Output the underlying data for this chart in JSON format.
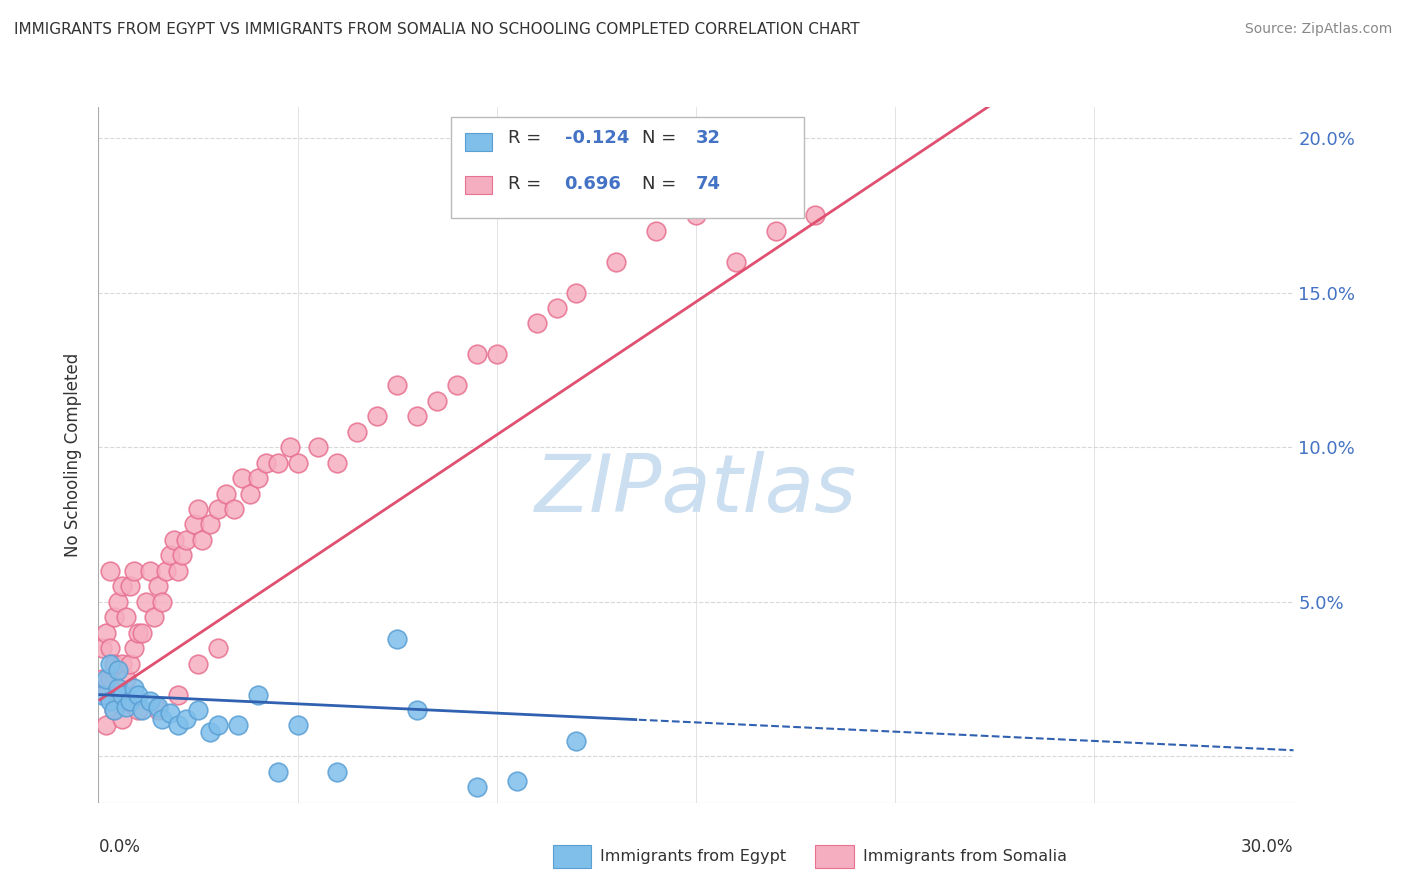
{
  "title": "IMMIGRANTS FROM EGYPT VS IMMIGRANTS FROM SOMALIA NO SCHOOLING COMPLETED CORRELATION CHART",
  "source": "Source: ZipAtlas.com",
  "ylabel": "No Schooling Completed",
  "egypt_color": "#7fbfea",
  "egypt_edge_color": "#5a9fd4",
  "somalia_color": "#f5aec0",
  "somalia_edge_color": "#e87090",
  "egypt_line_color": "#3060b0",
  "somalia_line_color": "#e05070",
  "egypt_R": -0.124,
  "egypt_N": 32,
  "somalia_R": 0.696,
  "somalia_N": 74,
  "xlim": [
    0.0,
    0.3
  ],
  "ylim": [
    -0.015,
    0.21
  ],
  "yticks": [
    0.0,
    0.05,
    0.1,
    0.15,
    0.2
  ],
  "ytick_labels": [
    "",
    "5.0%",
    "10.0%",
    "15.0%",
    "20.0%"
  ],
  "grid_color": "#d8d8d8",
  "background_color": "#ffffff",
  "title_color": "#333333",
  "source_color": "#888888",
  "right_tick_color": "#4472c4",
  "watermark_color": "#ccdff0"
}
